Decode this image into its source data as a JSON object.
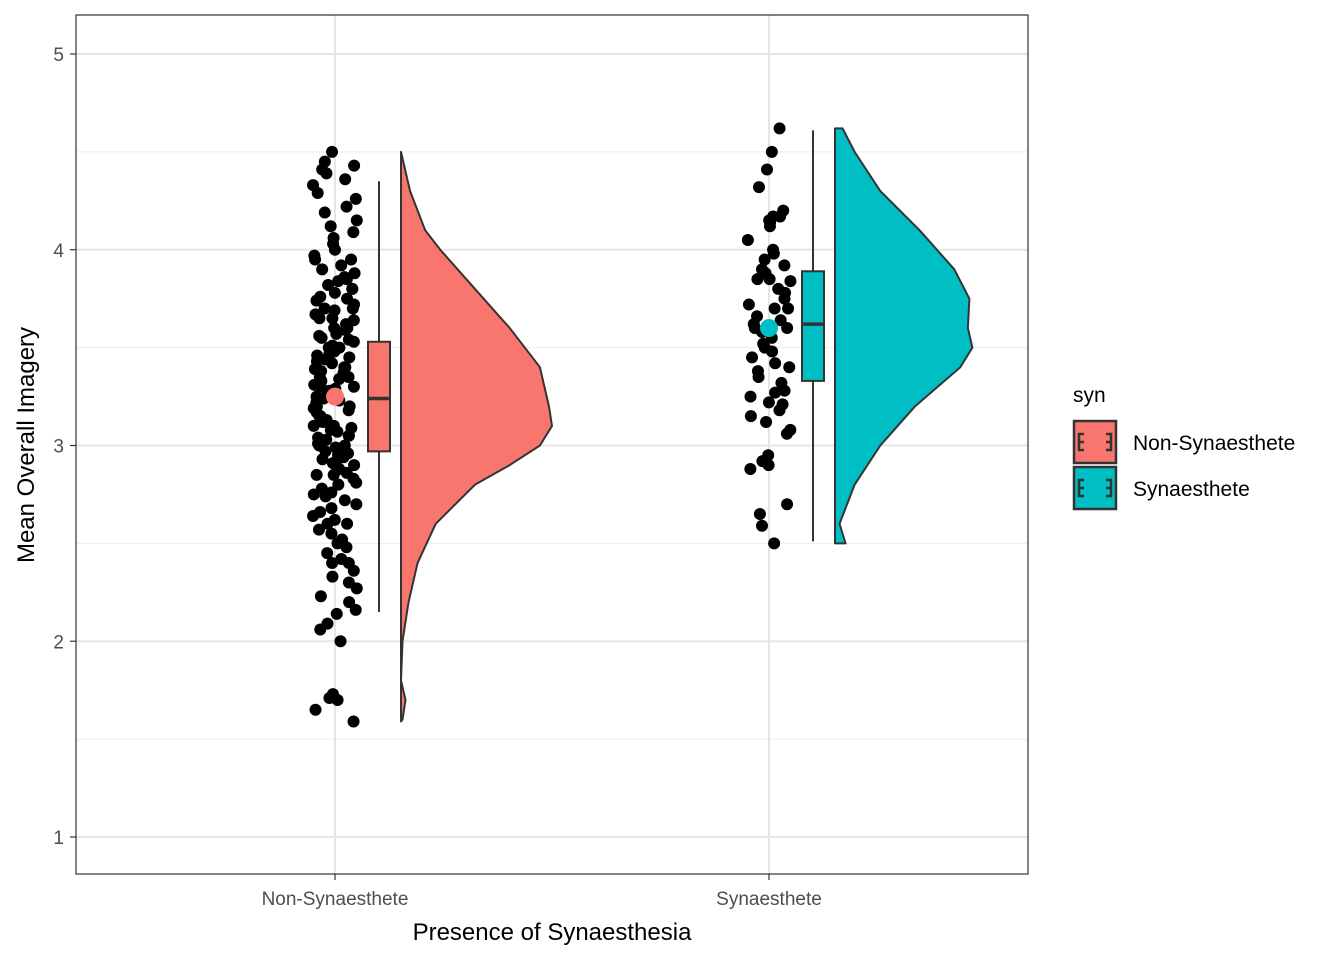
{
  "chart_data": {
    "type": "raincloud",
    "title": "",
    "xlabel": "Presence of Synaesthesia",
    "ylabel": "Mean Overall Imagery",
    "ylim": [
      0.8,
      5.2
    ],
    "yticks": [
      1,
      2,
      3,
      4,
      5
    ],
    "ytick_labels": [
      "1",
      "2",
      "3",
      "4",
      "5"
    ],
    "categories": [
      "Non-Synaesthete",
      "Synaesthete"
    ],
    "grid": true,
    "legend": {
      "title": "syn",
      "placement": "right",
      "entries": [
        "Non-Synaesthete",
        "Synaesthete"
      ]
    },
    "colors": {
      "Non-Synaesthete": "#F8766D",
      "Synaesthete": "#00BFC4"
    },
    "series": [
      {
        "name": "Non-Synaesthete",
        "mean": 3.25,
        "box": {
          "whisker_low": 2.15,
          "q1": 2.97,
          "median": 3.24,
          "q3": 3.53,
          "whisker_high": 4.35
        },
        "density": {
          "y": [
            1.59,
            1.6,
            1.7,
            1.8,
            2.0,
            2.2,
            2.4,
            2.6,
            2.8,
            2.9,
            3.0,
            3.1,
            3.2,
            3.4,
            3.6,
            3.8,
            4.0,
            4.1,
            4.3,
            4.5
          ],
          "relative": [
            0.0,
            0.01,
            0.03,
            0.0,
            0.01,
            0.05,
            0.11,
            0.23,
            0.49,
            0.72,
            0.92,
            1.0,
            0.98,
            0.92,
            0.72,
            0.49,
            0.26,
            0.16,
            0.06,
            0.0
          ]
        },
        "points": [
          1.59,
          1.65,
          1.7,
          1.71,
          1.73,
          2.0,
          2.06,
          2.09,
          2.14,
          2.16,
          2.2,
          2.23,
          2.27,
          2.3,
          2.33,
          2.36,
          2.4,
          2.42,
          2.45,
          2.48,
          2.5,
          2.52,
          2.55,
          2.57,
          2.6,
          2.62,
          2.64,
          2.66,
          2.68,
          2.7,
          2.72,
          2.74,
          2.76,
          2.78,
          2.8,
          2.81,
          2.83,
          2.85,
          2.86,
          2.88,
          2.9,
          2.91,
          2.93,
          2.94,
          2.96,
          2.97,
          2.99,
          3.0,
          3.01,
          3.03,
          3.04,
          3.05,
          3.07,
          3.08,
          3.09,
          3.1,
          3.12,
          3.13,
          3.14,
          3.15,
          3.17,
          3.18,
          3.19,
          3.2,
          3.22,
          3.23,
          3.24,
          3.25,
          3.26,
          3.28,
          3.29,
          3.3,
          3.31,
          3.33,
          3.34,
          3.35,
          3.37,
          3.38,
          3.39,
          3.4,
          3.42,
          3.43,
          3.44,
          3.46,
          3.47,
          3.48,
          3.5,
          3.51,
          3.53,
          3.54,
          3.56,
          3.57,
          3.59,
          3.6,
          3.62,
          3.64,
          3.65,
          3.67,
          3.69,
          3.7,
          3.72,
          3.74,
          3.76,
          3.78,
          3.8,
          3.82,
          3.84,
          3.86,
          3.88,
          3.9,
          3.92,
          3.95,
          3.97,
          4.0,
          4.03,
          4.06,
          4.09,
          4.12,
          4.15,
          4.19,
          4.22,
          4.26,
          4.29,
          4.33,
          4.36,
          4.39,
          4.41,
          4.43,
          4.45,
          4.5,
          2.4,
          2.6,
          2.75,
          2.95,
          3.05,
          3.15,
          3.35,
          3.45,
          3.55,
          3.65,
          3.75,
          3.85,
          3.95,
          2.85,
          3.0,
          3.2,
          3.3,
          3.5,
          3.6,
          3.7,
          3.1,
          3.25,
          3.4,
          2.9,
          3.8
        ]
      },
      {
        "name": "Synaesthete",
        "mean": 3.6,
        "box": {
          "whisker_low": 2.51,
          "q1": 3.33,
          "median": 3.62,
          "q3": 3.89,
          "whisker_high": 4.61
        },
        "density": {
          "y": [
            2.5,
            2.6,
            2.8,
            3.0,
            3.2,
            3.4,
            3.5,
            3.6,
            3.75,
            3.9,
            4.1,
            4.3,
            4.5,
            4.62
          ],
          "relative": [
            0.07,
            0.03,
            0.13,
            0.3,
            0.53,
            0.83,
            0.91,
            0.88,
            0.89,
            0.79,
            0.56,
            0.3,
            0.13,
            0.05
          ]
        },
        "points": [
          4.62,
          4.5,
          4.41,
          4.32,
          4.2,
          4.17,
          4.15,
          4.14,
          4.12,
          4.05,
          4.0,
          3.98,
          3.95,
          3.92,
          3.9,
          3.88,
          3.85,
          3.84,
          3.8,
          3.78,
          3.75,
          3.72,
          3.7,
          3.7,
          3.66,
          3.64,
          3.62,
          3.6,
          3.6,
          3.58,
          3.55,
          3.52,
          3.5,
          3.48,
          3.45,
          3.42,
          3.4,
          3.38,
          3.35,
          3.32,
          3.28,
          3.27,
          3.25,
          3.22,
          3.21,
          3.18,
          3.15,
          3.12,
          3.08,
          3.06,
          2.95,
          2.92,
          2.9,
          2.88,
          2.7,
          2.65,
          2.59,
          2.5,
          4.17,
          3.85
        ]
      }
    ]
  }
}
